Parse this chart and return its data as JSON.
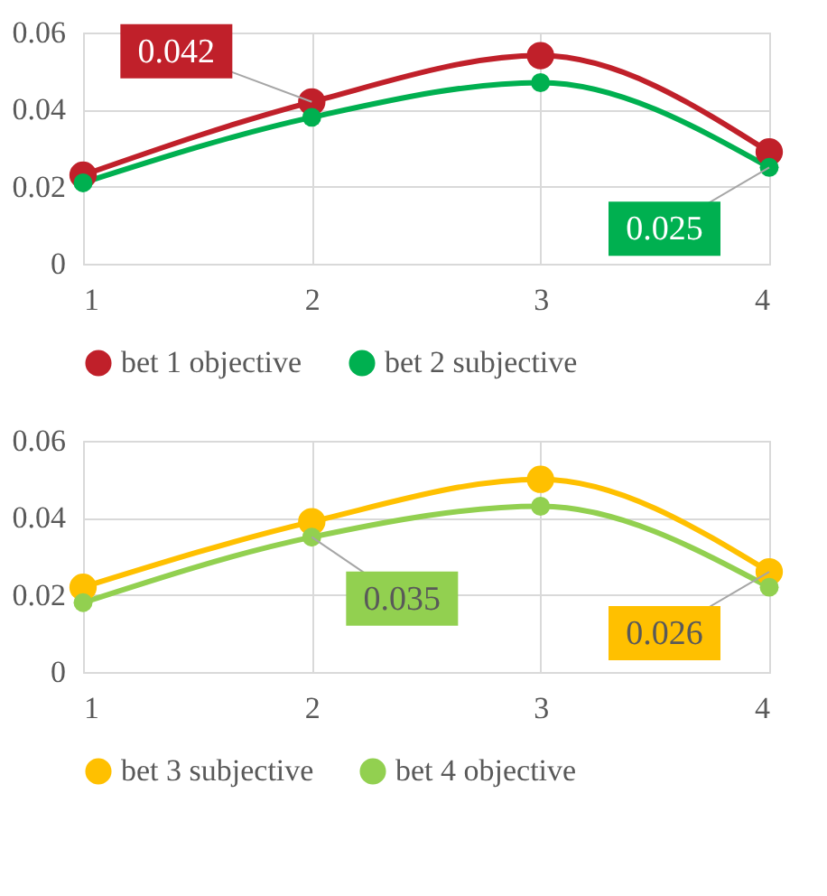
{
  "chart_data": [
    {
      "type": "line",
      "x": [
        1,
        2,
        3,
        4
      ],
      "xlim": [
        1,
        4
      ],
      "xticks": [
        1,
        2,
        3,
        4
      ],
      "ylim": [
        0,
        0.06
      ],
      "yticks": [
        0,
        0.02,
        0.04,
        0.06
      ],
      "grid": true,
      "legend": "bottom",
      "marker": "circle",
      "line_style": "solid",
      "series": [
        {
          "name": "bet 1 objective",
          "color": "#c0202a",
          "values": [
            0.023,
            0.042,
            0.054,
            0.029
          ],
          "value_labels": [
            null,
            "0.042",
            null,
            null
          ]
        },
        {
          "name": "bet 2 subjective",
          "color": "#00b050",
          "values": [
            0.021,
            0.038,
            0.047,
            0.025
          ],
          "value_labels": [
            null,
            null,
            null,
            "0.025"
          ]
        }
      ]
    },
    {
      "type": "line",
      "x": [
        1,
        2,
        3,
        4
      ],
      "xlim": [
        1,
        4
      ],
      "xticks": [
        1,
        2,
        3,
        4
      ],
      "ylim": [
        0,
        0.06
      ],
      "yticks": [
        0,
        0.02,
        0.04,
        0.06
      ],
      "grid": true,
      "legend": "bottom",
      "marker": "circle",
      "line_style": "solid",
      "series": [
        {
          "name": "bet 3 subjective",
          "color": "#ffc000",
          "values": [
            0.022,
            0.039,
            0.05,
            0.026
          ],
          "value_labels": [
            null,
            null,
            null,
            "0.026"
          ]
        },
        {
          "name": "bet 4 objective",
          "color": "#92d050",
          "values": [
            0.018,
            0.035,
            0.043,
            0.022
          ],
          "value_labels": [
            null,
            "0.035",
            null,
            null
          ]
        }
      ]
    }
  ]
}
